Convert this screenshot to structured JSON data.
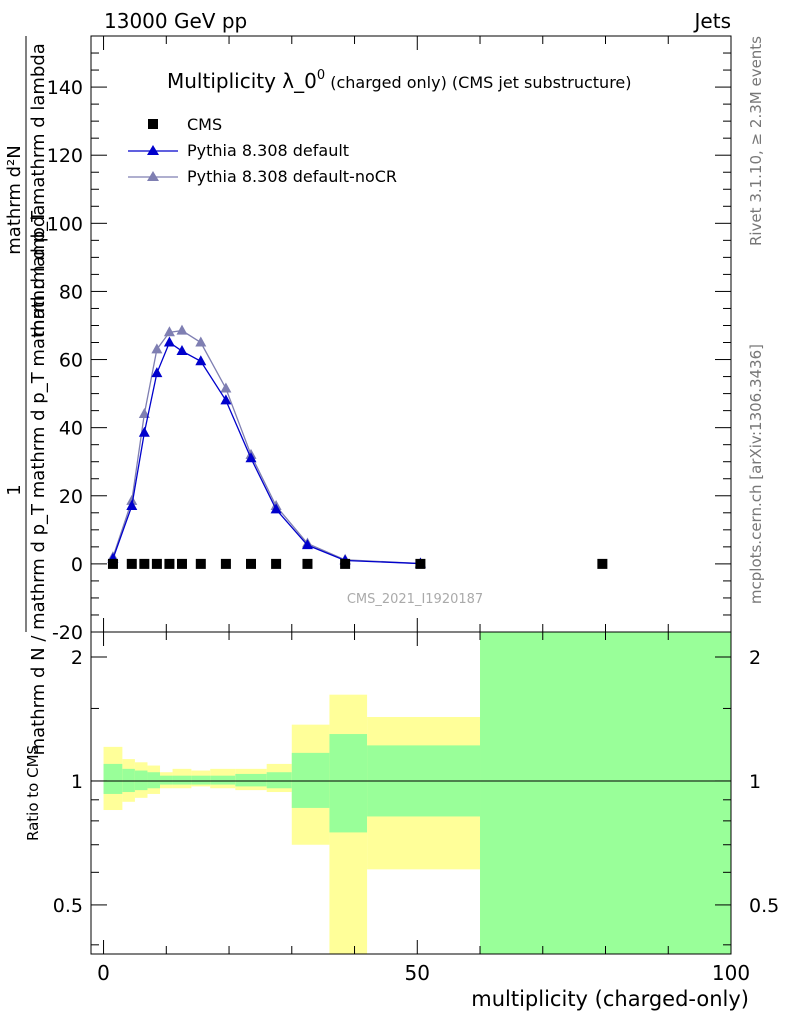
{
  "header": {
    "left": "13000 GeV pp",
    "right": "Jets"
  },
  "side_labels": {
    "rivet": "Rivet 3.1.10, ≥ 2.3M events",
    "mcplots": "mcplots.cern.ch [arXiv:1306.3436]"
  },
  "colors": {
    "cms": "#000000",
    "pythia_default": "#0000cc",
    "pythia_nocr": "#7f7fb2",
    "band_inner": "#99ff99",
    "band_outer": "#ffff99"
  },
  "chart_data": [
    {
      "type": "line",
      "title_main": "Multiplicity λ_0",
      "title_sup": "0",
      "title_rest": " (charged only) (CMS jet substructure)",
      "ylabel_num": "1",
      "ylabel_den": "mathrm d N / mathrm d p_T mathrm d p_T mathrm d lambda",
      "ylabel_top": "mathrm d²N",
      "watermark": "CMS_2021_I1920187",
      "xlim": [
        -2,
        100
      ],
      "ylim": [
        -20,
        155
      ],
      "yticks": [
        -20,
        0,
        20,
        40,
        60,
        80,
        100,
        120,
        140
      ],
      "legend_position": "top-left",
      "series": [
        {
          "name": "CMS",
          "marker": "square",
          "x": [
            1.5,
            4.5,
            6.5,
            8.5,
            10.5,
            12.5,
            15.5,
            19.5,
            23.5,
            27.5,
            32.5,
            38.5,
            50.5,
            79.5
          ],
          "y": [
            0,
            0,
            0,
            0,
            0,
            0,
            0,
            0,
            0,
            0,
            0,
            0,
            0,
            0
          ]
        },
        {
          "name": "Pythia 8.308 default",
          "marker": "triangle",
          "x": [
            1.5,
            4.5,
            6.5,
            8.5,
            10.5,
            12.5,
            15.5,
            19.5,
            23.5,
            27.5,
            32.5,
            38.5,
            50.5
          ],
          "y": [
            1.5,
            17,
            38.5,
            56,
            65,
            62.5,
            59.5,
            48,
            31,
            16,
            5.5,
            1,
            0.1
          ]
        },
        {
          "name": "Pythia 8.308 default-noCR",
          "marker": "triangle",
          "x": [
            1.5,
            4.5,
            6.5,
            8.5,
            10.5,
            12.5,
            15.5,
            19.5,
            23.5,
            27.5,
            32.5,
            38.5,
            50.5
          ],
          "y": [
            2,
            18.5,
            44,
            63,
            68,
            68.5,
            65,
            51.5,
            32,
            17,
            6,
            1.2,
            0.1
          ]
        }
      ]
    },
    {
      "type": "area",
      "ylabel": "Ratio to CMS",
      "xlabel": "multiplicity (charged-only)",
      "xlim": [
        -2,
        100
      ],
      "xticks": [
        0,
        50,
        100
      ],
      "yscale": "log",
      "ylim": [
        0.38,
        2.3
      ],
      "yticks_labeled": [
        0.5,
        1,
        2
      ],
      "reference_line": 1,
      "band_bins": [
        {
          "x0": 0,
          "x1": 3,
          "inner_lo": 0.93,
          "inner_hi": 1.1,
          "outer_lo": 0.85,
          "outer_hi": 1.21
        },
        {
          "x0": 3,
          "x1": 5,
          "inner_lo": 0.94,
          "inner_hi": 1.07,
          "outer_lo": 0.89,
          "outer_hi": 1.13
        },
        {
          "x0": 5,
          "x1": 7,
          "inner_lo": 0.95,
          "inner_hi": 1.06,
          "outer_lo": 0.91,
          "outer_hi": 1.11
        },
        {
          "x0": 7,
          "x1": 9,
          "inner_lo": 0.96,
          "inner_hi": 1.05,
          "outer_lo": 0.93,
          "outer_hi": 1.09
        },
        {
          "x0": 9,
          "x1": 11,
          "inner_lo": 0.98,
          "inner_hi": 1.03,
          "outer_lo": 0.96,
          "outer_hi": 1.05
        },
        {
          "x0": 11,
          "x1": 14,
          "inner_lo": 0.98,
          "inner_hi": 1.03,
          "outer_lo": 0.96,
          "outer_hi": 1.07
        },
        {
          "x0": 14,
          "x1": 17,
          "inner_lo": 0.98,
          "inner_hi": 1.03,
          "outer_lo": 0.97,
          "outer_hi": 1.06
        },
        {
          "x0": 17,
          "x1": 21,
          "inner_lo": 0.98,
          "inner_hi": 1.03,
          "outer_lo": 0.96,
          "outer_hi": 1.07
        },
        {
          "x0": 21,
          "x1": 26,
          "inner_lo": 0.97,
          "inner_hi": 1.04,
          "outer_lo": 0.95,
          "outer_hi": 1.07
        },
        {
          "x0": 26,
          "x1": 30,
          "inner_lo": 0.96,
          "inner_hi": 1.05,
          "outer_lo": 0.94,
          "outer_hi": 1.1
        },
        {
          "x0": 30,
          "x1": 36,
          "inner_lo": 0.86,
          "inner_hi": 1.17,
          "outer_lo": 0.7,
          "outer_hi": 1.37
        },
        {
          "x0": 36,
          "x1": 42,
          "inner_lo": 0.75,
          "inner_hi": 1.3,
          "outer_lo": 0.38,
          "outer_hi": 1.62
        },
        {
          "x0": 42,
          "x1": 60,
          "inner_lo": 0.82,
          "inner_hi": 1.22,
          "outer_lo": 0.61,
          "outer_hi": 1.43
        },
        {
          "x0": 60,
          "x1": 100,
          "inner_lo": 0.38,
          "inner_hi": 2.3,
          "outer_lo": 0.38,
          "outer_hi": 2.3
        }
      ]
    }
  ]
}
